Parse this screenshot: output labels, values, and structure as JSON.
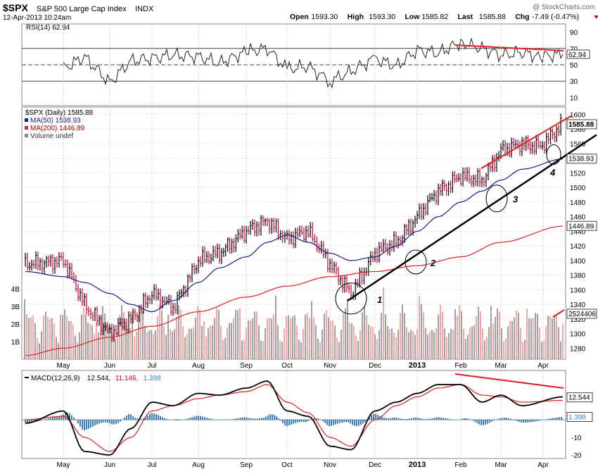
{
  "header": {
    "symbol": "$SPX",
    "name": "S&P 500 Large Cap Index",
    "exchange": "INDX",
    "watermark": "@ StockCharts.com",
    "datetime": "12-Apr-2013 10:24am",
    "quote": [
      {
        "label": "Open",
        "value": "1593.30"
      },
      {
        "label": "High",
        "value": "1593.30"
      },
      {
        "label": "Low",
        "value": "1585.82"
      },
      {
        "label": "Last",
        "value": "1585.88"
      },
      {
        "label": "Chg",
        "value": "-7.49 (-0.47%)"
      }
    ],
    "chg_arrow": "down-triangle-icon",
    "chg_color": "#cc0000"
  },
  "colors": {
    "up_bar": "#000000",
    "down_bar": "#cc0033",
    "ma50": "#1a1a8c",
    "ma200": "#e02020",
    "trendline": "#000000",
    "resistance": "#e02020",
    "volume_up": "#a0a0a0",
    "volume_down": "#f0a8a8",
    "macd_line": "#000000",
    "signal_line": "#e02020",
    "histogram": "#3a7fc0"
  },
  "months": [
    "May",
    "Jun",
    "Jul",
    "Aug",
    "Sep",
    "Oct",
    "Nov",
    "Dec",
    "2013",
    "Feb",
    "Mar",
    "Apr"
  ],
  "chart_data": [
    {
      "type": "line",
      "panel": "RSI",
      "legend": "RSI(14) 62.94",
      "ylim": [
        0,
        100
      ],
      "yticks": [
        10,
        30,
        50,
        70,
        90
      ],
      "last_value_label": "62.94",
      "reference_lines": [
        30,
        50,
        70
      ],
      "x": [
        "May",
        "May",
        "Jun",
        "Jun",
        "Jul",
        "Jul",
        "Aug",
        "Aug",
        "Sep",
        "Sep",
        "Oct",
        "Oct",
        "Nov",
        "Nov",
        "Dec",
        "Dec",
        "Jan",
        "Jan",
        "Feb",
        "Feb",
        "Mar",
        "Mar",
        "Apr",
        "Apr"
      ],
      "values": [
        45,
        60,
        28,
        55,
        58,
        62,
        60,
        52,
        66,
        70,
        45,
        48,
        30,
        42,
        58,
        48,
        68,
        64,
        78,
        70,
        62,
        65,
        60,
        63
      ]
    },
    {
      "type": "line",
      "panel": "price",
      "title": "$SPX (Daily) 1585.88",
      "ylim": [
        1265,
        1610
      ],
      "yticks": [
        1280,
        1300,
        1320,
        1340,
        1360,
        1380,
        1400,
        1420,
        1440,
        1460,
        1480,
        1500,
        1520,
        1540,
        1560,
        1580,
        1600
      ],
      "volume_ticks": [
        "1B",
        "2B",
        "3B",
        "4B"
      ],
      "volume_last_label": "2524406",
      "series": [
        {
          "name": "MA(50) 1538.93",
          "last_label": "1538.93",
          "x": [
            "Apr",
            "May",
            "May",
            "Jun",
            "Jun",
            "Jul",
            "Jul",
            "Aug",
            "Aug",
            "Sep",
            "Sep",
            "Oct",
            "Oct",
            "Nov",
            "Nov",
            "Dec",
            "Dec",
            "Jan",
            "Jan",
            "Feb",
            "Feb",
            "Mar",
            "Mar",
            "Apr"
          ],
          "values": [
            1385,
            1378,
            1370,
            1355,
            1340,
            1330,
            1345,
            1370,
            1390,
            1405,
            1425,
            1435,
            1425,
            1410,
            1400,
            1405,
            1420,
            1440,
            1460,
            1480,
            1495,
            1510,
            1525,
            1539
          ]
        },
        {
          "name": "MA(200) 1446.89",
          "last_label": "1446.89",
          "x": [
            "Apr",
            "May",
            "Jun",
            "Jul",
            "Aug",
            "Sep",
            "Oct",
            "Nov",
            "Dec",
            "Jan",
            "Feb",
            "Mar",
            "Apr"
          ],
          "values": [
            1270,
            1280,
            1295,
            1310,
            1330,
            1350,
            1365,
            1378,
            1385,
            1393,
            1405,
            1425,
            1447
          ]
        },
        {
          "name": "Volume undef"
        }
      ],
      "price_path": {
        "x": [
          "Apr",
          "May",
          "May",
          "Jun",
          "Jun",
          "Jul",
          "Jul",
          "Aug",
          "Aug",
          "Sep",
          "Sep",
          "Oct",
          "Oct",
          "Nov",
          "Nov",
          "Dec",
          "Dec",
          "Jan",
          "Jan",
          "Feb",
          "Feb",
          "Mar",
          "Mar",
          "Apr",
          "Apr"
        ],
        "values": [
          1395,
          1400,
          1340,
          1300,
          1320,
          1355,
          1335,
          1400,
          1410,
          1440,
          1455,
          1430,
          1440,
          1395,
          1355,
          1410,
          1425,
          1460,
          1495,
          1515,
          1510,
          1550,
          1560,
          1555,
          1588
        ]
      },
      "annotations": [
        {
          "label": "1",
          "x": "Nov",
          "value": 1348
        },
        {
          "label": "2",
          "x": "Dec",
          "value": 1398
        },
        {
          "label": "3",
          "x": "Feb",
          "value": 1485
        },
        {
          "label": "4",
          "x": "Apr",
          "value": 1545
        }
      ]
    },
    {
      "type": "line",
      "panel": "MACD",
      "legend": [
        "MACD(12,26,9)",
        "12.544",
        "11.146",
        "1.398"
      ],
      "ylim": [
        -22,
        28
      ],
      "yticks": [
        -20,
        -10,
        0,
        10,
        20
      ],
      "last_value_labels": [
        "12.544",
        "1.398"
      ],
      "series": [
        {
          "name": "MACD",
          "x": [
            "Apr",
            "May",
            "May",
            "Jun",
            "Jun",
            "Jul",
            "Jul",
            "Aug",
            "Aug",
            "Sep",
            "Sep",
            "Oct",
            "Oct",
            "Nov",
            "Nov",
            "Dec",
            "Dec",
            "Jan",
            "Jan",
            "Feb",
            "Feb",
            "Mar",
            "Mar",
            "Apr"
          ],
          "values": [
            -2,
            5,
            -18,
            -20,
            -5,
            10,
            8,
            15,
            14,
            18,
            22,
            5,
            2,
            -15,
            -17,
            5,
            10,
            15,
            20,
            20,
            10,
            14,
            8,
            13
          ]
        },
        {
          "name": "Signal",
          "x": [
            "Apr",
            "May",
            "May",
            "Jun",
            "Jun",
            "Jul",
            "Jul",
            "Aug",
            "Aug",
            "Sep",
            "Sep",
            "Oct",
            "Oct",
            "Nov",
            "Nov",
            "Dec",
            "Dec",
            "Jan",
            "Jan",
            "Feb",
            "Feb",
            "Mar",
            "Mar",
            "Apr"
          ],
          "values": [
            0,
            2,
            -10,
            -18,
            -10,
            5,
            8,
            12,
            14,
            16,
            20,
            10,
            4,
            -10,
            -15,
            0,
            8,
            13,
            18,
            20,
            14,
            13,
            10,
            11
          ]
        }
      ]
    }
  ]
}
